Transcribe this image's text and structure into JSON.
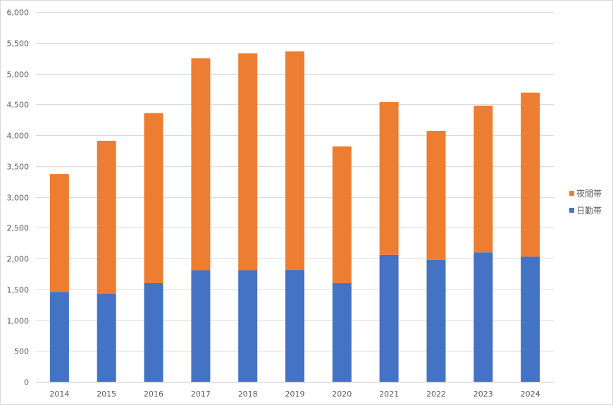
{
  "chart_data": {
    "type": "bar",
    "stacked": true,
    "categories": [
      "2014",
      "2015",
      "2016",
      "2017",
      "2018",
      "2019",
      "2020",
      "2021",
      "2022",
      "2023",
      "2024"
    ],
    "series": [
      {
        "name": "日勤帯",
        "color": "#4472C4",
        "values": [
          1460,
          1430,
          1600,
          1810,
          1810,
          1820,
          1600,
          2060,
          1980,
          2100,
          2030
        ]
      },
      {
        "name": "夜間帯",
        "color": "#ED7D31",
        "values": [
          1910,
          2480,
          2760,
          3440,
          3520,
          3540,
          2220,
          2480,
          2090,
          2380,
          2660
        ]
      }
    ],
    "ylim": [
      0,
      6000
    ],
    "yticks": [
      "0",
      "500",
      "1,000",
      "1,500",
      "2,000",
      "2,500",
      "3,000",
      "3,500",
      "4,000",
      "4,500",
      "5,000",
      "5,500",
      "6,000"
    ],
    "ytick_values": [
      0,
      500,
      1000,
      1500,
      2000,
      2500,
      3000,
      3500,
      4000,
      4500,
      5000,
      5500,
      6000
    ],
    "grid": true,
    "legend_position": "right",
    "legend_order": [
      "夜間帯",
      "日勤帯"
    ],
    "colors": {
      "gridline": "#D9D9D9",
      "axis": "#BFBFBF",
      "text": "#595959"
    }
  }
}
